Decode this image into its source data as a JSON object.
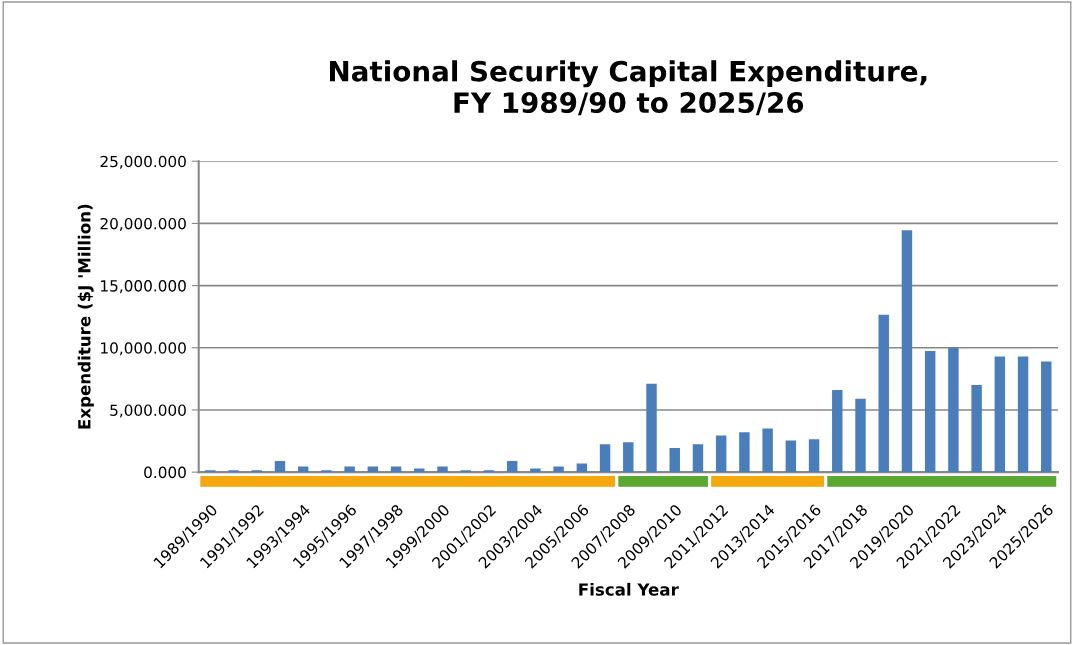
{
  "chart_data": {
    "type": "bar",
    "title": "National Security Capital Expenditure,\nFY 1989/90 to 2025/26",
    "xlabel": "Fiscal Year",
    "ylabel": "Expenditure ($J 'Million)",
    "categories": [
      "1989/1990",
      null,
      "1991/1992",
      null,
      "1993/1994",
      null,
      "1995/1996",
      null,
      "1997/1998",
      null,
      "1999/2000",
      null,
      "2001/2002",
      null,
      "2003/2004",
      null,
      "2005/2006",
      null,
      "2007/2008",
      null,
      "2009/2010",
      null,
      "2011/2012",
      null,
      "2013/2014",
      null,
      "2015/2016",
      null,
      "2017/2018",
      null,
      "2019/2020",
      null,
      "2021/2022",
      null,
      "2023/2024",
      null,
      "2025/2026"
    ],
    "values": [
      150,
      150,
      150,
      900,
      450,
      150,
      450,
      450,
      450,
      300,
      450,
      150,
      150,
      900,
      300,
      450,
      700,
      2250,
      2400,
      7100,
      1950,
      2250,
      2950,
      3200,
      3500,
      2550,
      2650,
      6600,
      5900,
      12650,
      19450,
      9750,
      10000,
      7000,
      9300,
      9300,
      8900
    ],
    "color": "#4a7ebb",
    "ylim": [
      0,
      25000
    ],
    "yticks": [
      {
        "value": 0,
        "label": "0.000"
      },
      {
        "value": 5000,
        "label": "5,000.000"
      },
      {
        "value": 10000,
        "label": "10,000.000"
      },
      {
        "value": 15000,
        "label": "15,000.000"
      },
      {
        "value": 20000,
        "label": "20,000.000"
      },
      {
        "value": 25000,
        "label": "25,000.000"
      }
    ],
    "grid": "y"
  }
}
